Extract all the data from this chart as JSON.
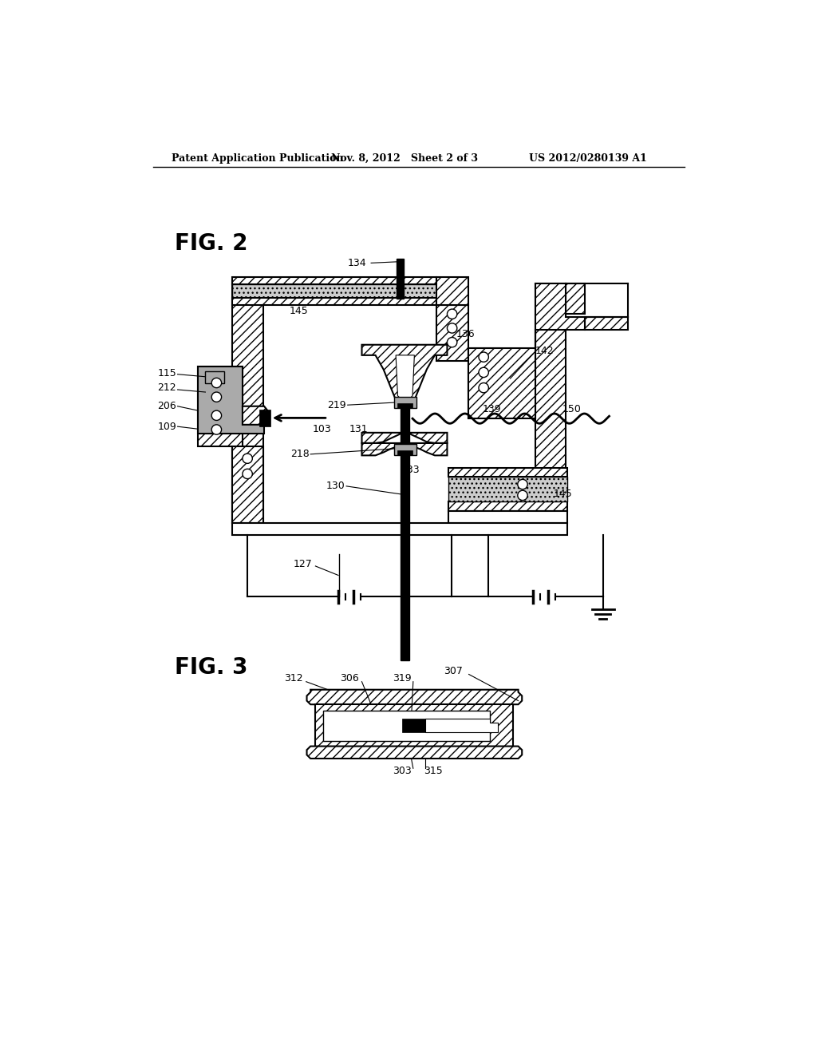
{
  "background_color": "#ffffff",
  "header_left": "Patent Application Publication",
  "header_mid": "Nov. 8, 2012   Sheet 2 of 3",
  "header_right": "US 2012/0280139 A1",
  "fig2_label": "FIG. 2",
  "fig3_label": "FIG. 3"
}
